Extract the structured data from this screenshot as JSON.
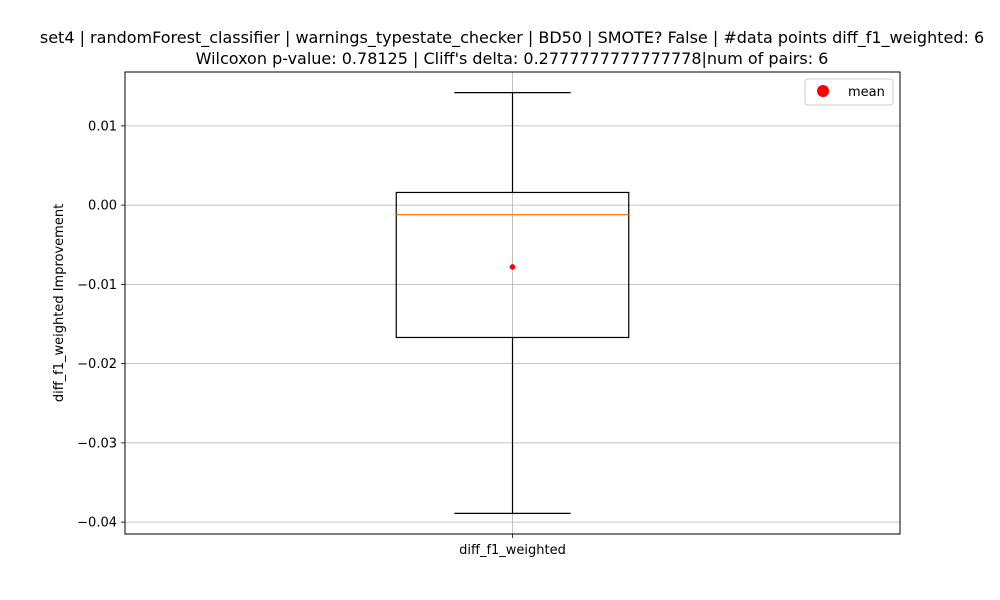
{
  "chart_data": {
    "type": "box",
    "title_line1": "set4 | randomForest_classifier | warnings_typestate_checker | BD50 | SMOTE? False | #data points diff_f1_weighted: 6",
    "title_line2": "Wilcoxon p-value: 0.78125 | Cliff's delta: 0.2777777777777778|num of pairs: 6",
    "ylabel": "diff_f1_weighted Improvement",
    "xlabel": "",
    "categories": [
      "diff_f1_weighted"
    ],
    "ylim": [
      -0.0415,
      0.0168
    ],
    "yticks": [
      0.01,
      0.0,
      -0.01,
      -0.02,
      -0.03,
      -0.04
    ],
    "ytick_labels": [
      "0.01",
      "0.00",
      "−0.01",
      "−0.02",
      "−0.03",
      "−0.04"
    ],
    "grid": true,
    "legend": {
      "position": "top-right",
      "entries": [
        "mean"
      ]
    },
    "boxes": [
      {
        "name": "diff_f1_weighted",
        "whisker_low": -0.0389,
        "q1": -0.0167,
        "median": -0.0012,
        "q3": 0.0016,
        "whisker_high": 0.0142,
        "mean": -0.0078
      }
    ],
    "colors": {
      "box": "#000000",
      "median": "#ff7f0e",
      "mean": "#ff0000",
      "grid": "#b0b0b0"
    }
  }
}
